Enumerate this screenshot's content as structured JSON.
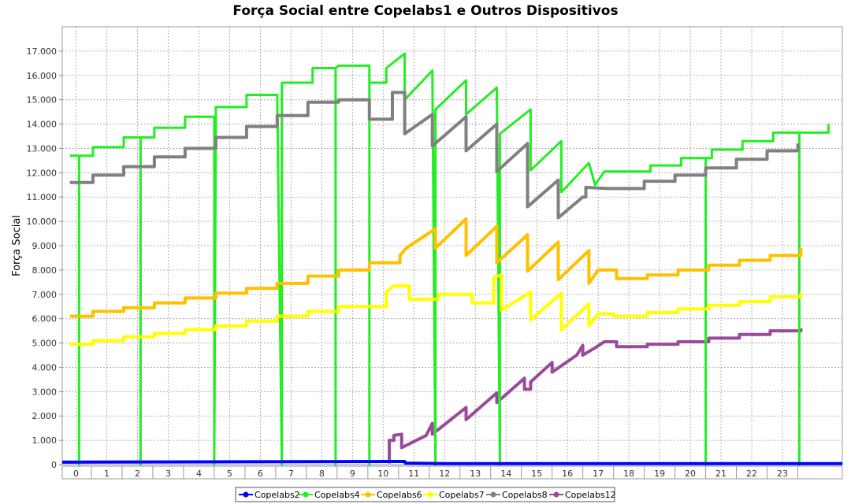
{
  "chart_data": {
    "type": "line",
    "title": "Força Social entre Copelabs1 e Outros Dispositivos",
    "xlabel": "",
    "ylabel": "Força Social",
    "xlim": [
      -0.45,
      24.95
    ],
    "ylim": [
      0,
      18000
    ],
    "grid": true,
    "legend_position": "bottom",
    "categories": [
      "0",
      "1",
      "2",
      "3",
      "4",
      "5",
      "6",
      "7",
      "8",
      "9",
      "10",
      "11",
      "12",
      "13",
      "14",
      "15",
      "16",
      "17",
      "18",
      "19",
      "20",
      "21",
      "22",
      "23"
    ],
    "yticks": [
      "0",
      "1.000",
      "2.000",
      "3.000",
      "4.000",
      "5.000",
      "6.000",
      "7.000",
      "8.000",
      "9.000",
      "10.000",
      "11.000",
      "12.000",
      "13.000",
      "14.000",
      "15.000",
      "16.000",
      "17.000"
    ],
    "series": [
      {
        "name": "Copelabs2",
        "color": "#0000ff",
        "points": [
          [
            -0.45,
            100
          ],
          [
            10.7,
            130
          ],
          [
            10.72,
            60
          ],
          [
            11.5,
            50
          ],
          [
            12,
            40
          ],
          [
            24.95,
            40
          ]
        ]
      },
      {
        "name": "Copelabs4",
        "color": "#22ee22",
        "points": [
          [
            -0.2,
            12700
          ],
          [
            0.1,
            12700
          ],
          [
            0.1,
            0
          ],
          [
            0.1,
            12700
          ],
          [
            0.55,
            12700
          ],
          [
            0.55,
            13050
          ],
          [
            1.55,
            13050
          ],
          [
            1.55,
            13450
          ],
          [
            2.1,
            13450
          ],
          [
            2.1,
            0
          ],
          [
            2.1,
            13450
          ],
          [
            2.55,
            13450
          ],
          [
            2.55,
            13850
          ],
          [
            3.55,
            13850
          ],
          [
            3.55,
            14300
          ],
          [
            4.55,
            14300
          ],
          [
            4.5,
            0
          ],
          [
            4.5,
            14300
          ],
          [
            4.55,
            14300
          ],
          [
            4.55,
            14700
          ],
          [
            5.55,
            14700
          ],
          [
            5.55,
            15200
          ],
          [
            6.55,
            15200
          ],
          [
            6.7,
            0
          ],
          [
            6.7,
            15200
          ],
          [
            6.7,
            15700
          ],
          [
            7.7,
            15700
          ],
          [
            7.7,
            16300
          ],
          [
            8.45,
            16300
          ],
          [
            8.45,
            0
          ],
          [
            8.45,
            16300
          ],
          [
            8.55,
            16400
          ],
          [
            9.55,
            16400
          ],
          [
            9.55,
            0
          ],
          [
            9.55,
            15700
          ],
          [
            10.1,
            15700
          ],
          [
            10.1,
            16300
          ],
          [
            10.7,
            16900
          ],
          [
            10.7,
            15000
          ],
          [
            11.6,
            16200
          ],
          [
            11.7,
            0
          ],
          [
            11.7,
            14600
          ],
          [
            12.7,
            15800
          ],
          [
            12.7,
            14400
          ],
          [
            13.7,
            15500
          ],
          [
            13.8,
            0
          ],
          [
            13.8,
            13600
          ],
          [
            14.8,
            14600
          ],
          [
            14.8,
            12100
          ],
          [
            15.8,
            13300
          ],
          [
            15.8,
            11200
          ],
          [
            16.7,
            12400
          ],
          [
            16.9,
            11500
          ],
          [
            17.2,
            12050
          ],
          [
            18.7,
            12050
          ],
          [
            18.7,
            12300
          ],
          [
            19.7,
            12300
          ],
          [
            19.7,
            12600
          ],
          [
            20.5,
            12600
          ],
          [
            20.5,
            0
          ],
          [
            20.5,
            12600
          ],
          [
            20.7,
            12600
          ],
          [
            20.7,
            12950
          ],
          [
            21.7,
            12950
          ],
          [
            21.7,
            13300
          ],
          [
            22.7,
            13300
          ],
          [
            22.7,
            13650
          ],
          [
            23.55,
            13650
          ],
          [
            23.55,
            0
          ],
          [
            23.55,
            13650
          ],
          [
            24.5,
            13650
          ],
          [
            24.5,
            14000
          ]
        ]
      },
      {
        "name": "Copelabs6",
        "color": "#ffc000",
        "points": [
          [
            -0.2,
            6100
          ],
          [
            0.55,
            6100
          ],
          [
            0.55,
            6300
          ],
          [
            1.55,
            6300
          ],
          [
            1.55,
            6450
          ],
          [
            2.55,
            6450
          ],
          [
            2.55,
            6650
          ],
          [
            3.55,
            6650
          ],
          [
            3.55,
            6850
          ],
          [
            4.55,
            6850
          ],
          [
            4.55,
            7050
          ],
          [
            5.55,
            7050
          ],
          [
            5.55,
            7250
          ],
          [
            6.55,
            7250
          ],
          [
            6.55,
            7450
          ],
          [
            7.55,
            7450
          ],
          [
            7.55,
            7750
          ],
          [
            8.55,
            7750
          ],
          [
            8.55,
            8000
          ],
          [
            9.55,
            8000
          ],
          [
            9.55,
            8300
          ],
          [
            10.55,
            8300
          ],
          [
            10.55,
            8600
          ],
          [
            10.75,
            8900
          ],
          [
            11.7,
            9700
          ],
          [
            11.7,
            8900
          ],
          [
            12.7,
            10100
          ],
          [
            12.7,
            8600
          ],
          [
            13.7,
            9800
          ],
          [
            13.7,
            8300
          ],
          [
            14.7,
            9450
          ],
          [
            14.7,
            7950
          ],
          [
            15.7,
            9150
          ],
          [
            15.7,
            7600
          ],
          [
            16.7,
            8800
          ],
          [
            16.7,
            7450
          ],
          [
            17.0,
            8000
          ],
          [
            17.6,
            8000
          ],
          [
            17.6,
            7650
          ],
          [
            18.6,
            7650
          ],
          [
            18.6,
            7800
          ],
          [
            19.6,
            7800
          ],
          [
            19.6,
            8000
          ],
          [
            20.6,
            8000
          ],
          [
            20.6,
            8200
          ],
          [
            21.6,
            8200
          ],
          [
            21.6,
            8400
          ],
          [
            22.6,
            8400
          ],
          [
            22.6,
            8600
          ],
          [
            23.6,
            8600
          ],
          [
            23.6,
            8900
          ]
        ]
      },
      {
        "name": "Copelabs7",
        "color": "#ffff00",
        "points": [
          [
            -0.2,
            4950
          ],
          [
            0.55,
            4950
          ],
          [
            0.55,
            5100
          ],
          [
            1.55,
            5100
          ],
          [
            1.55,
            5250
          ],
          [
            2.55,
            5250
          ],
          [
            2.55,
            5400
          ],
          [
            3.55,
            5400
          ],
          [
            3.55,
            5550
          ],
          [
            4.55,
            5550
          ],
          [
            4.55,
            5700
          ],
          [
            5.55,
            5700
          ],
          [
            5.55,
            5900
          ],
          [
            6.55,
            5900
          ],
          [
            6.55,
            6100
          ],
          [
            7.55,
            6100
          ],
          [
            7.55,
            6300
          ],
          [
            8.55,
            6300
          ],
          [
            8.55,
            6500
          ],
          [
            9.55,
            6500
          ],
          [
            10.1,
            6500
          ],
          [
            10.1,
            7100
          ],
          [
            10.35,
            7350
          ],
          [
            10.85,
            7350
          ],
          [
            10.85,
            6800
          ],
          [
            11.8,
            6800
          ],
          [
            11.8,
            7000
          ],
          [
            12.9,
            7000
          ],
          [
            12.9,
            6650
          ],
          [
            13.6,
            6650
          ],
          [
            13.6,
            7700
          ],
          [
            13.85,
            7800
          ],
          [
            13.85,
            6350
          ],
          [
            14.8,
            7100
          ],
          [
            14.8,
            5950
          ],
          [
            15.8,
            7050
          ],
          [
            15.8,
            5550
          ],
          [
            16.7,
            6600
          ],
          [
            16.7,
            5700
          ],
          [
            17.0,
            6200
          ],
          [
            17.5,
            6200
          ],
          [
            17.5,
            6100
          ],
          [
            18.6,
            6100
          ],
          [
            18.6,
            6250
          ],
          [
            19.6,
            6250
          ],
          [
            19.6,
            6400
          ],
          [
            20.6,
            6400
          ],
          [
            20.6,
            6550
          ],
          [
            21.6,
            6550
          ],
          [
            21.6,
            6700
          ],
          [
            22.6,
            6700
          ],
          [
            22.6,
            6900
          ],
          [
            23.6,
            6900
          ],
          [
            23.6,
            7050
          ]
        ]
      },
      {
        "name": "Copelabs8",
        "color": "#808080",
        "points": [
          [
            -0.2,
            11600
          ],
          [
            0.55,
            11600
          ],
          [
            0.55,
            11900
          ],
          [
            1.55,
            11900
          ],
          [
            1.55,
            12250
          ],
          [
            2.55,
            12250
          ],
          [
            2.55,
            12650
          ],
          [
            3.55,
            12650
          ],
          [
            3.55,
            13000
          ],
          [
            4.55,
            13000
          ],
          [
            4.55,
            13450
          ],
          [
            5.55,
            13450
          ],
          [
            5.55,
            13900
          ],
          [
            6.55,
            13900
          ],
          [
            6.55,
            14350
          ],
          [
            7.55,
            14350
          ],
          [
            7.55,
            14900
          ],
          [
            8.55,
            14900
          ],
          [
            8.55,
            15000
          ],
          [
            9.55,
            15000
          ],
          [
            9.55,
            14200
          ],
          [
            10.3,
            14200
          ],
          [
            10.3,
            15300
          ],
          [
            10.7,
            15300
          ],
          [
            10.7,
            13600
          ],
          [
            11.6,
            14400
          ],
          [
            11.6,
            13100
          ],
          [
            12.7,
            14300
          ],
          [
            12.7,
            12900
          ],
          [
            13.7,
            14000
          ],
          [
            13.7,
            12050
          ],
          [
            14.7,
            13200
          ],
          [
            14.7,
            10600
          ],
          [
            15.7,
            11700
          ],
          [
            15.7,
            10150
          ],
          [
            16.5,
            11000
          ],
          [
            16.6,
            11000
          ],
          [
            16.6,
            11400
          ],
          [
            17.3,
            11350
          ],
          [
            18.5,
            11350
          ],
          [
            18.5,
            11650
          ],
          [
            19.5,
            11650
          ],
          [
            19.5,
            11900
          ],
          [
            20.5,
            11900
          ],
          [
            20.5,
            12200
          ],
          [
            21.5,
            12200
          ],
          [
            21.5,
            12550
          ],
          [
            22.5,
            12550
          ],
          [
            22.5,
            12900
          ],
          [
            23.5,
            12900
          ],
          [
            23.5,
            13200
          ]
        ]
      },
      {
        "name": "Copelabs12",
        "color": "#9a4a9a",
        "points": [
          [
            10.2,
            50
          ],
          [
            10.2,
            1000
          ],
          [
            10.35,
            1000
          ],
          [
            10.35,
            1200
          ],
          [
            10.6,
            1250
          ],
          [
            10.6,
            700
          ],
          [
            11.4,
            1200
          ],
          [
            11.6,
            1700
          ],
          [
            11.6,
            1250
          ],
          [
            12.7,
            2350
          ],
          [
            12.7,
            1850
          ],
          [
            13.7,
            2950
          ],
          [
            13.7,
            2550
          ],
          [
            14.6,
            3550
          ],
          [
            14.6,
            3100
          ],
          [
            14.8,
            3100
          ],
          [
            14.8,
            3400
          ],
          [
            15.5,
            4200
          ],
          [
            15.5,
            3800
          ],
          [
            16.3,
            4500
          ],
          [
            16.5,
            4900
          ],
          [
            16.5,
            4500
          ],
          [
            16.9,
            4800
          ],
          [
            17.2,
            5050
          ],
          [
            17.6,
            5050
          ],
          [
            17.6,
            4850
          ],
          [
            18.6,
            4850
          ],
          [
            18.6,
            4950
          ],
          [
            19.6,
            4950
          ],
          [
            19.6,
            5050
          ],
          [
            20.6,
            5050
          ],
          [
            20.6,
            5200
          ],
          [
            21.6,
            5200
          ],
          [
            21.6,
            5350
          ],
          [
            22.6,
            5350
          ],
          [
            22.6,
            5500
          ],
          [
            23.6,
            5500
          ],
          [
            23.6,
            5600
          ]
        ]
      }
    ]
  }
}
